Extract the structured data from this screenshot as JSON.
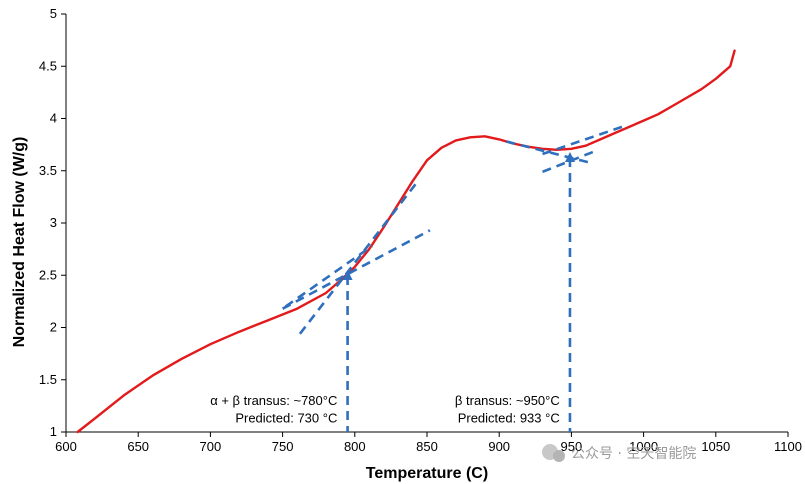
{
  "chart_data": {
    "type": "line",
    "title": "",
    "xlabel": "Temperature (C)",
    "ylabel": "Normalized Heat Flow (W/g)",
    "xlim": [
      600,
      1100
    ],
    "ylim": [
      1,
      5
    ],
    "xticks": [
      "600",
      "650",
      "700",
      "750",
      "800",
      "850",
      "900",
      "950",
      "1000",
      "1050",
      "1100"
    ],
    "yticks": [
      "1",
      "1.5",
      "2",
      "2.5",
      "3",
      "3.5",
      "4",
      "4.5",
      "5"
    ],
    "grid": false,
    "series": [
      {
        "name": "heat flow",
        "color": "#e31a1c",
        "x": [
          608,
          620,
          640,
          660,
          680,
          700,
          720,
          740,
          760,
          780,
          790,
          800,
          810,
          820,
          830,
          840,
          850,
          860,
          870,
          880,
          890,
          900,
          910,
          920,
          930,
          940,
          950,
          960,
          970,
          980,
          990,
          1000,
          1010,
          1020,
          1030,
          1040,
          1050,
          1060,
          1063
        ],
        "y": [
          1.0,
          1.13,
          1.35,
          1.54,
          1.7,
          1.84,
          1.96,
          2.07,
          2.18,
          2.33,
          2.45,
          2.58,
          2.75,
          2.96,
          3.18,
          3.4,
          3.6,
          3.72,
          3.79,
          3.82,
          3.83,
          3.8,
          3.76,
          3.73,
          3.71,
          3.7,
          3.71,
          3.74,
          3.8,
          3.86,
          3.92,
          3.98,
          4.04,
          4.12,
          4.2,
          4.28,
          4.38,
          4.5,
          4.65
        ]
      }
    ],
    "tangent_lines": [
      {
        "x": [
          750,
          852
        ],
        "y": [
          2.18,
          2.93
        ]
      },
      {
        "x": [
          762,
          842
        ],
        "y": [
          1.94,
          3.37
        ]
      },
      {
        "x": [
          752,
          812
        ],
        "y": [
          2.2,
          2.78
        ]
      },
      {
        "x": [
          905,
          965
        ],
        "y": [
          3.78,
          3.57
        ]
      },
      {
        "x": [
          930,
          985
        ],
        "y": [
          3.66,
          3.92
        ]
      },
      {
        "x": [
          930,
          965
        ],
        "y": [
          3.49,
          3.68
        ]
      }
    ],
    "drop_lines": [
      {
        "x": 795,
        "y_from": 2.55,
        "y_to": 1.0
      },
      {
        "x": 949,
        "y_from": 3.68,
        "y_to": 1.0
      }
    ],
    "annotations": [
      {
        "line1": "α + β transus:  ~780°C",
        "line2": "Predicted:  730 °C",
        "x": 790,
        "y1": 1.26,
        "y2": 1.09
      },
      {
        "line1": "β transus:  ~950°C",
        "line2": "Predicted:  933 °C",
        "x": 944,
        "y1": 1.26,
        "y2": 1.09
      }
    ],
    "watermark": "公众号 · 空天智能院"
  }
}
